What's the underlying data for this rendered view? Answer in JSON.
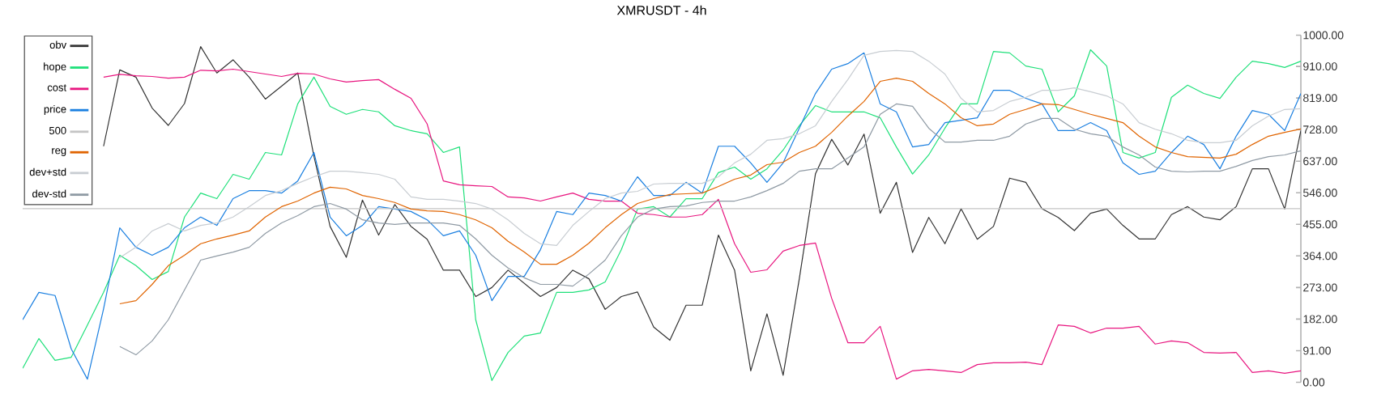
{
  "chart_data": {
    "type": "line",
    "title": "XMRUSDT - 4h",
    "categories": [
      null,
      null,
      null,
      null,
      null,
      null,
      null,
      null,
      null,
      null,
      null,
      null,
      null,
      null,
      null,
      null,
      null,
      null,
      null,
      null,
      null,
      null,
      null,
      null,
      null,
      null,
      null,
      null,
      null,
      null,
      null,
      null,
      null,
      null,
      null,
      null,
      null,
      null,
      null,
      null,
      null,
      null,
      null,
      null,
      null,
      null,
      null,
      null,
      null,
      null,
      null,
      null,
      null,
      null,
      null,
      null,
      null,
      null,
      null,
      null,
      null,
      null,
      null,
      null,
      null,
      null,
      null,
      null,
      null,
      null,
      null,
      null,
      null,
      null,
      null,
      null,
      null,
      null,
      null,
      null
    ],
    "series": [
      {
        "name": "obv",
        "color": "#333333",
        "values": [
          null,
          null,
          null,
          null,
          null,
          680,
          900,
          879,
          790,
          740,
          803,
          967,
          891,
          929,
          879,
          816,
          853,
          891,
          651,
          449,
          360,
          525,
          424,
          512,
          449,
          412,
          323,
          323,
          247,
          273,
          323,
          285,
          247,
          273,
          323,
          298,
          210,
          247,
          260,
          159,
          121,
          222,
          222,
          424,
          323,
          33,
          197,
          20,
          298,
          601,
          700,
          626,
          715,
          487,
          576,
          374,
          475,
          399,
          500,
          412,
          449,
          588,
          576,
          500,
          475,
          437,
          487,
          499,
          452,
          413,
          413,
          483,
          506,
          476,
          468,
          506,
          615,
          615,
          499,
          725
        ]
      },
      {
        "name": "hope",
        "color": "#1fe07a",
        "values": [
          40,
          126,
          63,
          72,
          165,
          259,
          366,
          336,
          296,
          319,
          476,
          545,
          529,
          599,
          585,
          662,
          655,
          802,
          879,
          795,
          772,
          786,
          779,
          739,
          725,
          716,
          662,
          678,
          180,
          5,
          86,
          133,
          142,
          259,
          259,
          266,
          289,
          382,
          499,
          506,
          476,
          529,
          529,
          604,
          620,
          585,
          615,
          669,
          739,
          797,
          779,
          779,
          779,
          762,
          678,
          600,
          655,
          732,
          802,
          802,
          953,
          949,
          911,
          902,
          779,
          825,
          958,
          911,
          662,
          646,
          662,
          821,
          856,
          832,
          818,
          879,
          925,
          918,
          907,
          925
        ]
      },
      {
        "name": "cost",
        "color": "#e8157f",
        "values": [
          null,
          null,
          null,
          null,
          null,
          879,
          887,
          883,
          881,
          876,
          879,
          899,
          897,
          902,
          895,
          888,
          881,
          890,
          888,
          874,
          865,
          869,
          872,
          844,
          818,
          744,
          580,
          569,
          566,
          564,
          534,
          531,
          522,
          534,
          545,
          527,
          522,
          522,
          487,
          483,
          476,
          476,
          483,
          527,
          399,
          317,
          324,
          378,
          394,
          401,
          242,
          114,
          114,
          161,
          9,
          33,
          37,
          33,
          28,
          51,
          56,
          56,
          58,
          51,
          165,
          161,
          142,
          156,
          156,
          161,
          110,
          119,
          114,
          86,
          84,
          86,
          28,
          33,
          26,
          33
        ]
      },
      {
        "name": "price",
        "color": "#1a7fe0",
        "values": [
          180,
          259,
          250,
          96,
          9,
          212,
          445,
          389,
          366,
          389,
          445,
          476,
          452,
          529,
          552,
          552,
          545,
          580,
          662,
          476,
          422,
          452,
          506,
          499,
          492,
          468,
          422,
          436,
          366,
          235,
          305,
          305,
          382,
          492,
          483,
          545,
          538,
          522,
          592,
          538,
          538,
          576,
          545,
          680,
          680,
          632,
          576,
          632,
          732,
          832,
          902,
          918,
          949,
          802,
          779,
          678,
          685,
          748,
          755,
          762,
          841,
          841,
          818,
          802,
          725,
          725,
          748,
          725,
          632,
          599,
          608,
          662,
          709,
          685,
          615,
          709,
          783,
          772,
          725,
          832
        ]
      },
      {
        "name": "500",
        "color": "#c4c4c4",
        "values": [
          500,
          500,
          500,
          500,
          500,
          500,
          500,
          500,
          500,
          500,
          500,
          500,
          500,
          500,
          500,
          500,
          500,
          500,
          500,
          500,
          500,
          500,
          500,
          500,
          500,
          500,
          500,
          500,
          500,
          500,
          500,
          500,
          500,
          500,
          500,
          500,
          500,
          500,
          500,
          500,
          500,
          500,
          500,
          500,
          500,
          500,
          500,
          500,
          500,
          500,
          500,
          500,
          500,
          500,
          500,
          500,
          500,
          500,
          500,
          500,
          500,
          500,
          500,
          500,
          500,
          500,
          500,
          500,
          500,
          500,
          500,
          500,
          500,
          500,
          500,
          500,
          500,
          500,
          500,
          500
        ]
      },
      {
        "name": "reg",
        "color": "#e06400",
        "values": [
          null,
          null,
          null,
          null,
          null,
          null,
          226,
          235,
          282,
          336,
          366,
          399,
          413,
          424,
          436,
          476,
          506,
          522,
          545,
          562,
          557,
          538,
          529,
          518,
          499,
          494,
          492,
          483,
          468,
          445,
          406,
          375,
          340,
          340,
          366,
          401,
          445,
          483,
          515,
          529,
          541,
          543,
          545,
          564,
          585,
          597,
          627,
          634,
          662,
          680,
          720,
          767,
          809,
          867,
          876,
          867,
          832,
          802,
          762,
          739,
          744,
          772,
          786,
          802,
          800,
          786,
          772,
          760,
          748,
          709,
          678,
          662,
          650,
          648,
          646,
          657,
          685,
          709,
          720,
          730
        ]
      },
      {
        "name": "dev+std",
        "color": "#c8cdd2",
        "values": [
          null,
          null,
          null,
          null,
          null,
          null,
          359,
          389,
          436,
          457,
          436,
          452,
          459,
          476,
          506,
          538,
          552,
          573,
          592,
          608,
          608,
          604,
          599,
          585,
          534,
          527,
          527,
          522,
          515,
          499,
          468,
          429,
          399,
          394,
          452,
          492,
          529,
          545,
          550,
          571,
          573,
          573,
          573,
          592,
          632,
          657,
          697,
          702,
          716,
          739,
          809,
          872,
          942,
          953,
          956,
          953,
          925,
          888,
          818,
          779,
          783,
          809,
          821,
          841,
          841,
          848,
          837,
          825,
          802,
          748,
          729,
          716,
          697,
          690,
          690,
          697,
          739,
          767,
          786,
          788
        ]
      },
      {
        "name": "dev-std",
        "color": "#8f9aa4",
        "values": [
          null,
          null,
          null,
          null,
          null,
          null,
          103,
          79,
          119,
          180,
          266,
          352,
          364,
          375,
          389,
          429,
          459,
          480,
          506,
          515,
          499,
          468,
          459,
          455,
          459,
          459,
          459,
          452,
          413,
          366,
          329,
          301,
          282,
          282,
          277,
          312,
          352,
          422,
          476,
          499,
          506,
          508,
          518,
          522,
          522,
          534,
          552,
          573,
          608,
          615,
          615,
          646,
          678,
          772,
          802,
          795,
          732,
          692,
          692,
          697,
          697,
          709,
          744,
          760,
          760,
          729,
          716,
          709,
          678,
          655,
          620,
          608,
          606,
          608,
          608,
          622,
          639,
          650,
          655,
          667
        ]
      }
    ],
    "ylim": [
      0,
      1000
    ],
    "yticks": [
      {
        "value": 0,
        "label": "0.00"
      },
      {
        "value": 91,
        "label": "91.00"
      },
      {
        "value": 182,
        "label": "182.00"
      },
      {
        "value": 273,
        "label": "273.00"
      },
      {
        "value": 364,
        "label": "364.00"
      },
      {
        "value": 455,
        "label": "455.00"
      },
      {
        "value": 546,
        "label": "546.00"
      },
      {
        "value": 637,
        "label": "637.00"
      },
      {
        "value": 728,
        "label": "728.00"
      },
      {
        "value": 819,
        "label": "819.00"
      },
      {
        "value": 910,
        "label": "910.00"
      },
      {
        "value": 1000,
        "label": "1000.00"
      }
    ],
    "tick_labels": "y",
    "legend": "top left",
    "grid": false,
    "marker": "none",
    "line_style": "solid"
  }
}
